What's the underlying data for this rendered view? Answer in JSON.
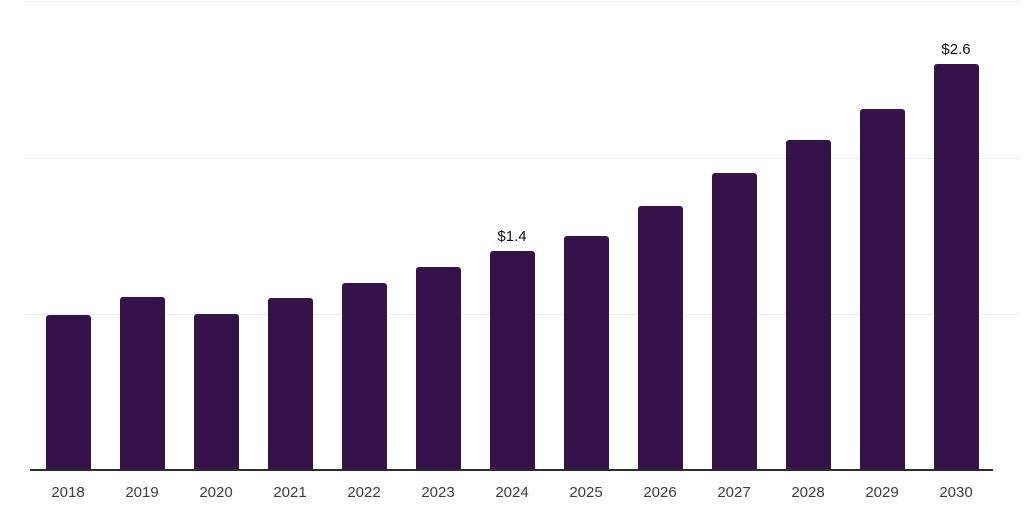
{
  "chart_data": {
    "type": "bar",
    "title": "",
    "xlabel": "",
    "ylabel": "",
    "categories": [
      "2018",
      "2019",
      "2020",
      "2021",
      "2022",
      "2023",
      "2024",
      "2025",
      "2026",
      "2027",
      "2028",
      "2029",
      "2030"
    ],
    "values": [
      0.99,
      1.11,
      1.0,
      1.1,
      1.2,
      1.3,
      1.4,
      1.5,
      1.69,
      1.9,
      2.11,
      2.31,
      2.6
    ],
    "data_labels": [
      {
        "category": "2024",
        "index": 6,
        "text": "$1.4"
      },
      {
        "category": "2030",
        "index": 12,
        "text": "$2.6"
      }
    ],
    "ylim": [
      0,
      3
    ],
    "gridline_values": [
      1,
      2,
      3
    ],
    "grid": true,
    "legend_position": "none",
    "colors": {
      "bar": "#36124b",
      "gridline": "#ededed",
      "axis_line": "#2b2b2b",
      "value_label": "#111111",
      "tick_label": "#3d3d3d",
      "background": "#ffffff"
    }
  }
}
